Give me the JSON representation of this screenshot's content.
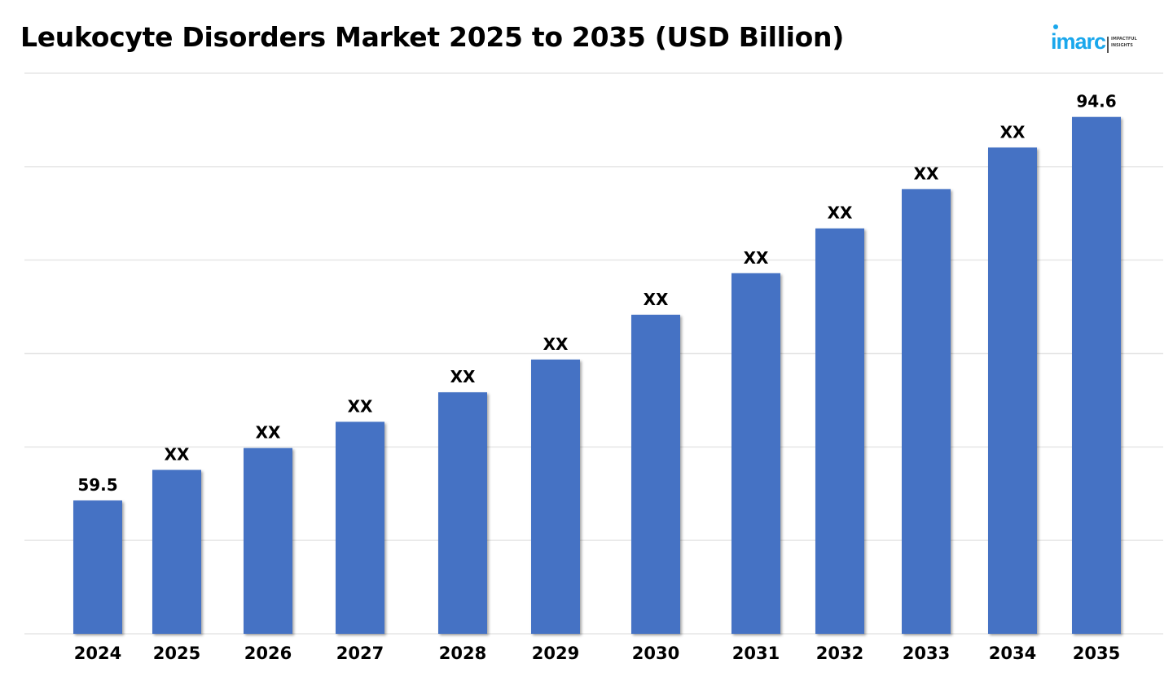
{
  "title": "Leukocyte Disorders Market 2025 to 2035 (USD Billion)",
  "logo": {
    "brand": "imarc",
    "tagline_line1": "IMPACTFUL",
    "tagline_line2": "INSIGHTS"
  },
  "colors": {
    "bar": "#4472c4",
    "grid": "#e6e6e6",
    "brand": "#1aa7ec"
  },
  "chart_data": {
    "type": "bar",
    "title": "Leukocyte Disorders Market 2025 to 2035 (USD Billion)",
    "xlabel": "",
    "ylabel": "USD Billion",
    "categories": [
      "2024",
      "2025",
      "2026",
      "2027",
      "2028",
      "2029",
      "2030",
      "2031",
      "2032",
      "2033",
      "2034",
      "2035"
    ],
    "values": [
      59.5,
      62.3,
      64.3,
      66.7,
      69.4,
      72.4,
      76.5,
      80.3,
      84.4,
      88.0,
      91.8,
      94.6
    ],
    "data_labels": [
      "59.5",
      "XX",
      "XX",
      "XX",
      "XX",
      "XX",
      "XX",
      "XX",
      "XX",
      "XX",
      "XX",
      "94.6"
    ],
    "ylim": [
      47.3,
      98.6
    ],
    "grid": true,
    "gridline_count": 7,
    "legend": "none"
  }
}
